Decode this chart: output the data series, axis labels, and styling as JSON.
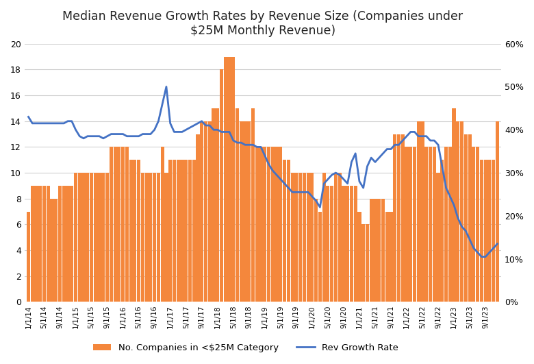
{
  "title": "Median Revenue Growth Rates by Revenue Size (Companies under\n$25M Monthly Revenue)",
  "bar_color": "#F4873C",
  "line_color": "#4472C4",
  "bar_label": "No. Companies in <$25M Category",
  "line_label": "Rev Growth Rate",
  "left_ylim": [
    0,
    20
  ],
  "right_ylim": [
    0,
    0.6
  ],
  "left_yticks": [
    0,
    2,
    4,
    6,
    8,
    10,
    12,
    14,
    16,
    18,
    20
  ],
  "right_yticks": [
    0,
    0.1,
    0.2,
    0.3,
    0.4,
    0.5,
    0.6
  ],
  "right_yticklabels": [
    "0%",
    "10%",
    "20%",
    "30%",
    "40%",
    "50%",
    "60%"
  ],
  "bar_values": [
    7,
    9,
    9,
    9,
    9,
    9,
    8,
    8,
    9,
    9,
    9,
    9,
    10,
    10,
    10,
    10,
    10,
    10,
    10,
    10,
    10,
    12,
    12,
    12,
    12,
    12,
    11,
    11,
    11,
    10,
    10,
    10,
    10,
    10,
    12,
    10,
    11,
    11,
    11,
    11,
    11,
    11,
    11,
    13,
    14,
    14,
    14,
    15,
    15,
    18,
    19,
    19,
    19,
    15,
    14,
    14,
    14,
    15,
    12,
    12,
    12,
    12,
    12,
    12,
    12,
    11,
    11,
    10,
    10,
    10,
    10,
    10,
    10,
    8,
    7,
    10,
    9,
    9,
    10,
    10,
    9,
    9,
    9,
    9,
    7,
    6,
    6,
    8,
    8,
    8,
    8,
    7,
    7,
    13,
    13,
    13,
    12,
    12,
    12,
    14,
    14,
    12,
    12,
    12,
    10,
    11,
    12,
    12,
    15,
    14,
    14,
    13,
    13,
    12,
    12,
    11,
    11,
    11,
    11,
    14
  ],
  "line_values": [
    0.43,
    0.415,
    0.415,
    0.415,
    0.415,
    0.415,
    0.415,
    0.415,
    0.415,
    0.415,
    0.42,
    0.42,
    0.4,
    0.385,
    0.38,
    0.385,
    0.385,
    0.385,
    0.385,
    0.38,
    0.385,
    0.39,
    0.39,
    0.39,
    0.39,
    0.385,
    0.385,
    0.385,
    0.385,
    0.39,
    0.39,
    0.39,
    0.4,
    0.42,
    0.46,
    0.5,
    0.415,
    0.395,
    0.395,
    0.395,
    0.4,
    0.405,
    0.41,
    0.415,
    0.42,
    0.41,
    0.41,
    0.4,
    0.4,
    0.395,
    0.395,
    0.395,
    0.375,
    0.37,
    0.37,
    0.365,
    0.365,
    0.365,
    0.36,
    0.36,
    0.34,
    0.32,
    0.305,
    0.295,
    0.285,
    0.275,
    0.265,
    0.255,
    0.255,
    0.255,
    0.255,
    0.255,
    0.245,
    0.235,
    0.22,
    0.275,
    0.285,
    0.295,
    0.3,
    0.295,
    0.285,
    0.275,
    0.325,
    0.345,
    0.28,
    0.265,
    0.315,
    0.335,
    0.325,
    0.335,
    0.345,
    0.355,
    0.355,
    0.365,
    0.365,
    0.375,
    0.385,
    0.395,
    0.395,
    0.385,
    0.385,
    0.385,
    0.375,
    0.375,
    0.365,
    0.315,
    0.265,
    0.245,
    0.225,
    0.195,
    0.175,
    0.165,
    0.145,
    0.125,
    0.115,
    0.105,
    0.105,
    0.115,
    0.125,
    0.135
  ],
  "xtick_labels": [
    "1/1/14",
    "5/1/14",
    "9/1/14",
    "1/1/15",
    "5/1/15",
    "9/1/15",
    "1/1/16",
    "5/1/16",
    "9/1/16",
    "1/1/17",
    "5/1/17",
    "9/1/17",
    "1/1/18",
    "5/1/18",
    "9/1/18",
    "1/1/19",
    "5/1/19",
    "9/1/19",
    "1/1/20",
    "5/1/20",
    "9/1/20",
    "1/1/21",
    "5/1/21",
    "9/1/21",
    "1/1/22",
    "5/1/22",
    "9/1/22",
    "1/1/23",
    "5/1/23",
    "9/1/23"
  ],
  "xtick_positions": [
    0,
    4,
    8,
    12,
    16,
    20,
    24,
    28,
    32,
    36,
    40,
    44,
    48,
    52,
    56,
    60,
    64,
    68,
    72,
    76,
    80,
    84,
    88,
    92,
    96,
    100,
    104,
    108,
    112,
    116
  ],
  "background_color": "#FFFFFF",
  "grid_color": "#D0D0D0"
}
